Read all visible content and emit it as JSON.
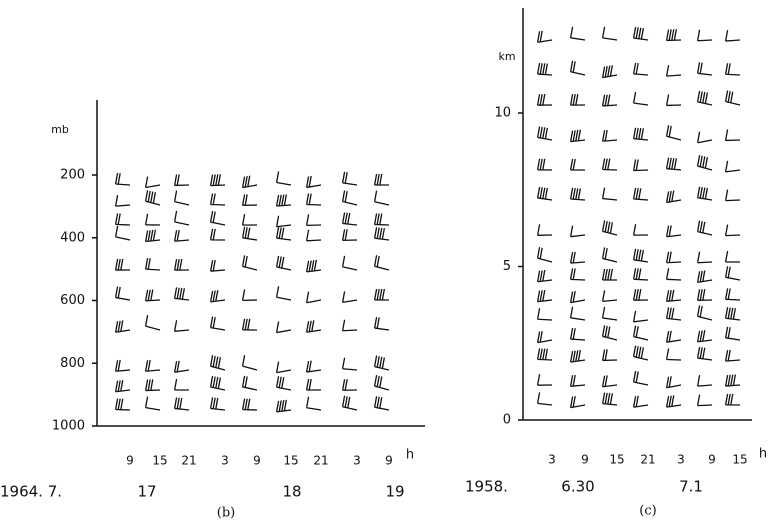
{
  "panels": [
    {
      "label": "(b)",
      "y_unit": "mb",
      "ylim": [
        200,
        1000
      ],
      "yticks": [
        200,
        400,
        600,
        800,
        1000
      ],
      "x_unit": "h",
      "xticks": [
        "9",
        "15",
        "21",
        "3",
        "9",
        "15",
        "21",
        "3",
        "9"
      ],
      "date_prefix": "1964. 7.",
      "days": [
        "17",
        "18",
        "19"
      ]
    },
    {
      "label": "(c)",
      "y_unit": "km",
      "ylim": [
        0,
        10
      ],
      "yticks": [
        0,
        5,
        10
      ],
      "x_unit": "h",
      "xticks": [
        "3",
        "9",
        "15",
        "21",
        "3",
        "9",
        "15"
      ],
      "date_prefix": "1958.",
      "days": [
        "6.30",
        "7.1"
      ]
    }
  ]
}
